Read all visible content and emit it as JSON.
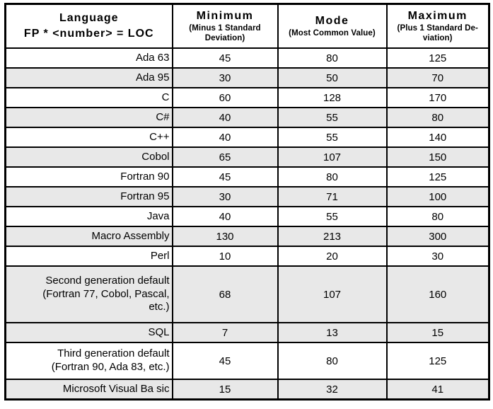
{
  "colors": {
    "row_shade": "#e8e8e8",
    "border": "#000000",
    "background": "#ffffff",
    "text": "#000000"
  },
  "header": {
    "language_line1": "Language",
    "language_line2": "FP * <number> = LOC",
    "columns": [
      {
        "title": "Minimum",
        "sub_line1": "(Minus 1 Standard",
        "sub_line2": "Deviation)"
      },
      {
        "title": "Mode",
        "sub_line1": "(Most Common Value)",
        "sub_line2": null
      },
      {
        "title": "Maximum",
        "sub_line1": "(Plus 1 Standard De-",
        "sub_line2": "viation)"
      }
    ]
  },
  "rows": [
    {
      "language_lines": [
        "Ada 63"
      ],
      "minimum": "45",
      "mode": "80",
      "maximum": "125",
      "shaded": false
    },
    {
      "language_lines": [
        "Ada 95"
      ],
      "minimum": "30",
      "mode": "50",
      "maximum": "70",
      "shaded": true
    },
    {
      "language_lines": [
        "C"
      ],
      "minimum": "60",
      "mode": "128",
      "maximum": "170",
      "shaded": false
    },
    {
      "language_lines": [
        "C#"
      ],
      "minimum": "40",
      "mode": "55",
      "maximum": "80",
      "shaded": true
    },
    {
      "language_lines": [
        "C++"
      ],
      "minimum": "40",
      "mode": "55",
      "maximum": "140",
      "shaded": false
    },
    {
      "language_lines": [
        "Cobol"
      ],
      "minimum": "65",
      "mode": "107",
      "maximum": "150",
      "shaded": true
    },
    {
      "language_lines": [
        "Fortran 90"
      ],
      "minimum": "45",
      "mode": "80",
      "maximum": "125",
      "shaded": false
    },
    {
      "language_lines": [
        "Fortran 95"
      ],
      "minimum": "30",
      "mode": "71",
      "maximum": "100",
      "shaded": true
    },
    {
      "language_lines": [
        "Java"
      ],
      "minimum": "40",
      "mode": "55",
      "maximum": "80",
      "shaded": false
    },
    {
      "language_lines": [
        "Macro Assembly"
      ],
      "minimum": "130",
      "mode": "213",
      "maximum": "300",
      "shaded": true
    },
    {
      "language_lines": [
        "Perl"
      ],
      "minimum": "10",
      "mode": "20",
      "maximum": "30",
      "shaded": false
    },
    {
      "language_lines": [
        "Second generation default",
        "(Fortran 77, Cobol, Pascal,",
        "etc.)"
      ],
      "minimum": "68",
      "mode": "107",
      "maximum": "160",
      "shaded": true
    },
    {
      "language_lines": [
        "SQL"
      ],
      "minimum": "7",
      "mode": "13",
      "maximum": "15",
      "shaded": true
    },
    {
      "language_lines": [
        "Third generation default",
        "(Fortran 90, Ada 83, etc.)"
      ],
      "minimum": "45",
      "mode": "80",
      "maximum": "125",
      "shaded": false
    },
    {
      "language_lines": [
        "Microsoft Visual Ba sic"
      ],
      "minimum": "15",
      "mode": "32",
      "maximum": "41",
      "shaded": true
    }
  ]
}
